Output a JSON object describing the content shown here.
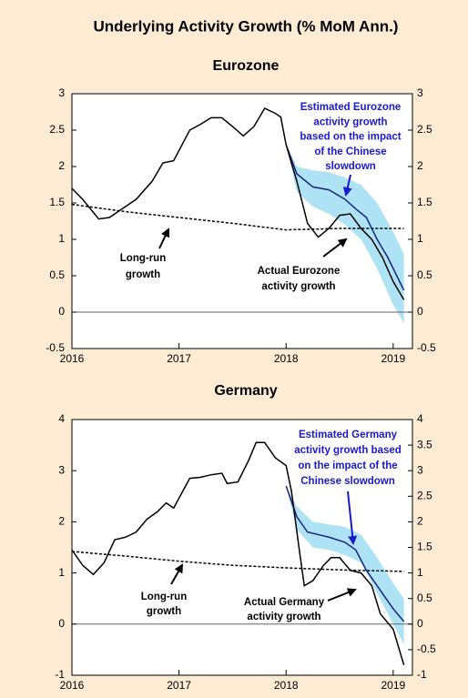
{
  "title": "Underlying Activity Growth (% MoM Ann.)",
  "chart_data": [
    {
      "type": "line",
      "title": "Eurozone",
      "xlim": [
        2016,
        2019.18
      ],
      "xticks": [
        2016,
        2017,
        2018,
        2019
      ],
      "ylim": [
        -0.5,
        3
      ],
      "yticks": [
        -0.5,
        0,
        0.5,
        1,
        1.5,
        2,
        2.5,
        3
      ],
      "y2lim": [
        -0.5,
        3
      ],
      "y2ticks": [
        -0.5,
        0,
        0.5,
        1,
        1.5,
        2,
        2.5,
        3
      ],
      "series": [
        {
          "kind": "band",
          "color": "#aee3f5",
          "x": [
            2018.0,
            2018.1,
            2018.25,
            2018.4,
            2018.55,
            2018.7,
            2018.85,
            2019.0,
            2019.1
          ],
          "upper": [
            2.3,
            2.0,
            1.95,
            1.92,
            1.85,
            1.75,
            1.5,
            1.1,
            0.8
          ],
          "lower": [
            2.3,
            1.65,
            1.45,
            1.35,
            1.2,
            1.0,
            0.6,
            0.1,
            -0.15
          ]
        },
        {
          "kind": "line",
          "style": "dashed",
          "color": "#000000",
          "x": [
            2016.0,
            2016.5,
            2017.0,
            2017.5,
            2018.0,
            2018.5,
            2019.1
          ],
          "values": [
            1.48,
            1.38,
            1.3,
            1.22,
            1.13,
            1.15,
            1.15
          ]
        },
        {
          "kind": "line",
          "style": "solid",
          "color": "#1a237e",
          "x": [
            2018.0,
            2018.1,
            2018.25,
            2018.4,
            2018.55,
            2018.65,
            2018.75,
            2018.85,
            2018.95,
            2019.05,
            2019.1
          ],
          "values": [
            2.3,
            1.9,
            1.72,
            1.68,
            1.55,
            1.42,
            1.3,
            1.0,
            0.75,
            0.45,
            0.3
          ]
        },
        {
          "kind": "line",
          "style": "solid",
          "color": "#000000",
          "x": [
            2016.0,
            2016.1,
            2016.25,
            2016.35,
            2016.45,
            2016.6,
            2016.75,
            2016.85,
            2016.95,
            2017.1,
            2017.2,
            2017.3,
            2017.4,
            2017.5,
            2017.6,
            2017.7,
            2017.8,
            2017.9,
            2017.95,
            2018.0,
            2018.1,
            2018.2,
            2018.3,
            2018.4,
            2018.5,
            2018.6,
            2018.7,
            2018.8,
            2018.9,
            2019.0,
            2019.1
          ],
          "values": [
            1.7,
            1.55,
            1.28,
            1.3,
            1.4,
            1.55,
            1.8,
            2.05,
            2.08,
            2.5,
            2.58,
            2.67,
            2.67,
            2.55,
            2.42,
            2.55,
            2.8,
            2.73,
            2.68,
            2.3,
            1.8,
            1.22,
            1.03,
            1.15,
            1.33,
            1.35,
            1.15,
            1.0,
            0.75,
            0.42,
            0.17
          ]
        }
      ],
      "annotations": [
        {
          "color": "#1a1acc",
          "lines": [
            "Estimated Eurozone",
            "activity growth",
            "based on the impact",
            "of the Chinese",
            "slowdown"
          ]
        },
        {
          "color": "#000000",
          "lines": [
            "Long-run",
            "growth"
          ]
        },
        {
          "color": "#000000",
          "lines": [
            "Actual Eurozone",
            "activity growth"
          ]
        }
      ]
    },
    {
      "type": "line",
      "title": "Germany",
      "xlim": [
        2016,
        2019.18
      ],
      "xticks": [
        2016,
        2017,
        2018,
        2019
      ],
      "ylim": [
        -1,
        4
      ],
      "yticks": [
        -1,
        0,
        1,
        2,
        3,
        4
      ],
      "y2lim": [
        -1,
        4
      ],
      "y2ticks": [
        -1,
        -0.5,
        0,
        0.5,
        1,
        1.5,
        2,
        2.5,
        3,
        3.5,
        4
      ],
      "series": [
        {
          "kind": "band",
          "color": "#aee3f5",
          "x": [
            2018.0,
            2018.1,
            2018.25,
            2018.4,
            2018.55,
            2018.7,
            2018.85,
            2019.0,
            2019.1
          ],
          "upper": [
            2.7,
            2.3,
            2.0,
            1.95,
            1.9,
            1.75,
            1.3,
            0.8,
            0.5
          ],
          "lower": [
            2.7,
            1.85,
            1.5,
            1.45,
            1.35,
            1.2,
            0.6,
            0.0,
            -0.4
          ]
        },
        {
          "kind": "line",
          "style": "dashed",
          "color": "#000000",
          "x": [
            2016.0,
            2016.5,
            2017.0,
            2017.5,
            2018.0,
            2018.5,
            2019.1
          ],
          "values": [
            1.42,
            1.33,
            1.23,
            1.15,
            1.1,
            1.06,
            1.03
          ]
        },
        {
          "kind": "line",
          "style": "solid",
          "color": "#1a237e",
          "x": [
            2018.0,
            2018.1,
            2018.2,
            2018.3,
            2018.4,
            2018.55,
            2018.65,
            2018.75,
            2018.85,
            2019.0,
            2019.1
          ],
          "values": [
            2.7,
            2.1,
            1.8,
            1.75,
            1.7,
            1.6,
            1.45,
            1.05,
            0.75,
            0.3,
            0.05
          ]
        },
        {
          "kind": "line",
          "style": "solid",
          "color": "#000000",
          "x": [
            2016.0,
            2016.1,
            2016.2,
            2016.3,
            2016.4,
            2016.5,
            2016.6,
            2016.7,
            2016.8,
            2016.88,
            2016.95,
            2017.1,
            2017.2,
            2017.3,
            2017.4,
            2017.45,
            2017.55,
            2017.65,
            2017.72,
            2017.8,
            2017.9,
            2018.0,
            2018.05,
            2018.12,
            2018.17,
            2018.25,
            2018.35,
            2018.42,
            2018.5,
            2018.6,
            2018.7,
            2018.8,
            2018.88,
            2019.0,
            2019.1
          ],
          "values": [
            1.45,
            1.15,
            0.97,
            1.2,
            1.65,
            1.7,
            1.8,
            2.05,
            2.2,
            2.37,
            2.27,
            2.85,
            2.87,
            2.92,
            2.95,
            2.75,
            2.78,
            3.2,
            3.55,
            3.55,
            3.25,
            3.1,
            2.6,
            1.5,
            0.75,
            0.85,
            1.15,
            1.3,
            1.3,
            1.05,
            1.0,
            0.75,
            0.2,
            -0.1,
            -0.8
          ]
        }
      ],
      "annotations": [
        {
          "color": "#1a1acc",
          "lines": [
            "Estimated Germany",
            "activity growth based",
            "on the impact of the",
            "Chinese slowdown"
          ]
        },
        {
          "color": "#000000",
          "lines": [
            "Long-run",
            "growth"
          ]
        },
        {
          "color": "#000000",
          "lines": [
            "Actual Germany",
            "activity growth"
          ]
        }
      ]
    }
  ]
}
